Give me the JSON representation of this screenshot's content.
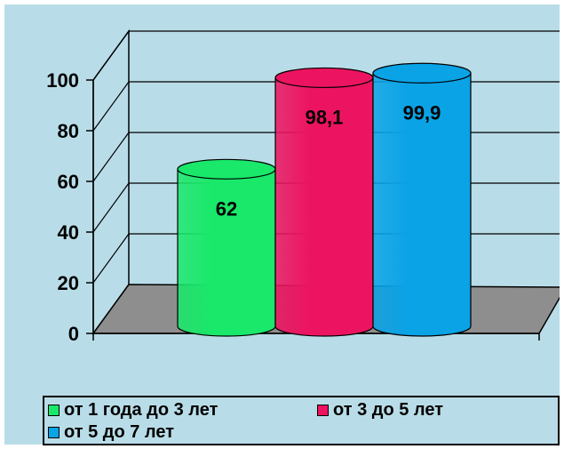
{
  "chart_data": {
    "type": "bar",
    "style": "3d-cylinder",
    "categories": [
      "от 1 года до 3 лет",
      "от 3 до 5 лет",
      "от 5 до 7 лет"
    ],
    "values": [
      62,
      98.1,
      99.9
    ],
    "data_labels": [
      "62",
      "98,1",
      "99,9"
    ],
    "colors": [
      "#19e86a",
      "#ec1460",
      "#0aa3e6"
    ],
    "ylim": [
      0,
      100
    ],
    "yticks": [
      "0",
      "20",
      "40",
      "60",
      "80",
      "100"
    ],
    "grid": true,
    "legend_placement": "bottom",
    "background_color": "#b9dde8",
    "floor_color": "#8e8e8e"
  },
  "legend": {
    "items": [
      {
        "label": "от 1 года до 3 лет",
        "color": "#19e86a"
      },
      {
        "label": "от 3 до 5 лет",
        "color": "#ec1460"
      },
      {
        "label": "от 5 до 7 лет",
        "color": "#0aa3e6"
      }
    ]
  }
}
